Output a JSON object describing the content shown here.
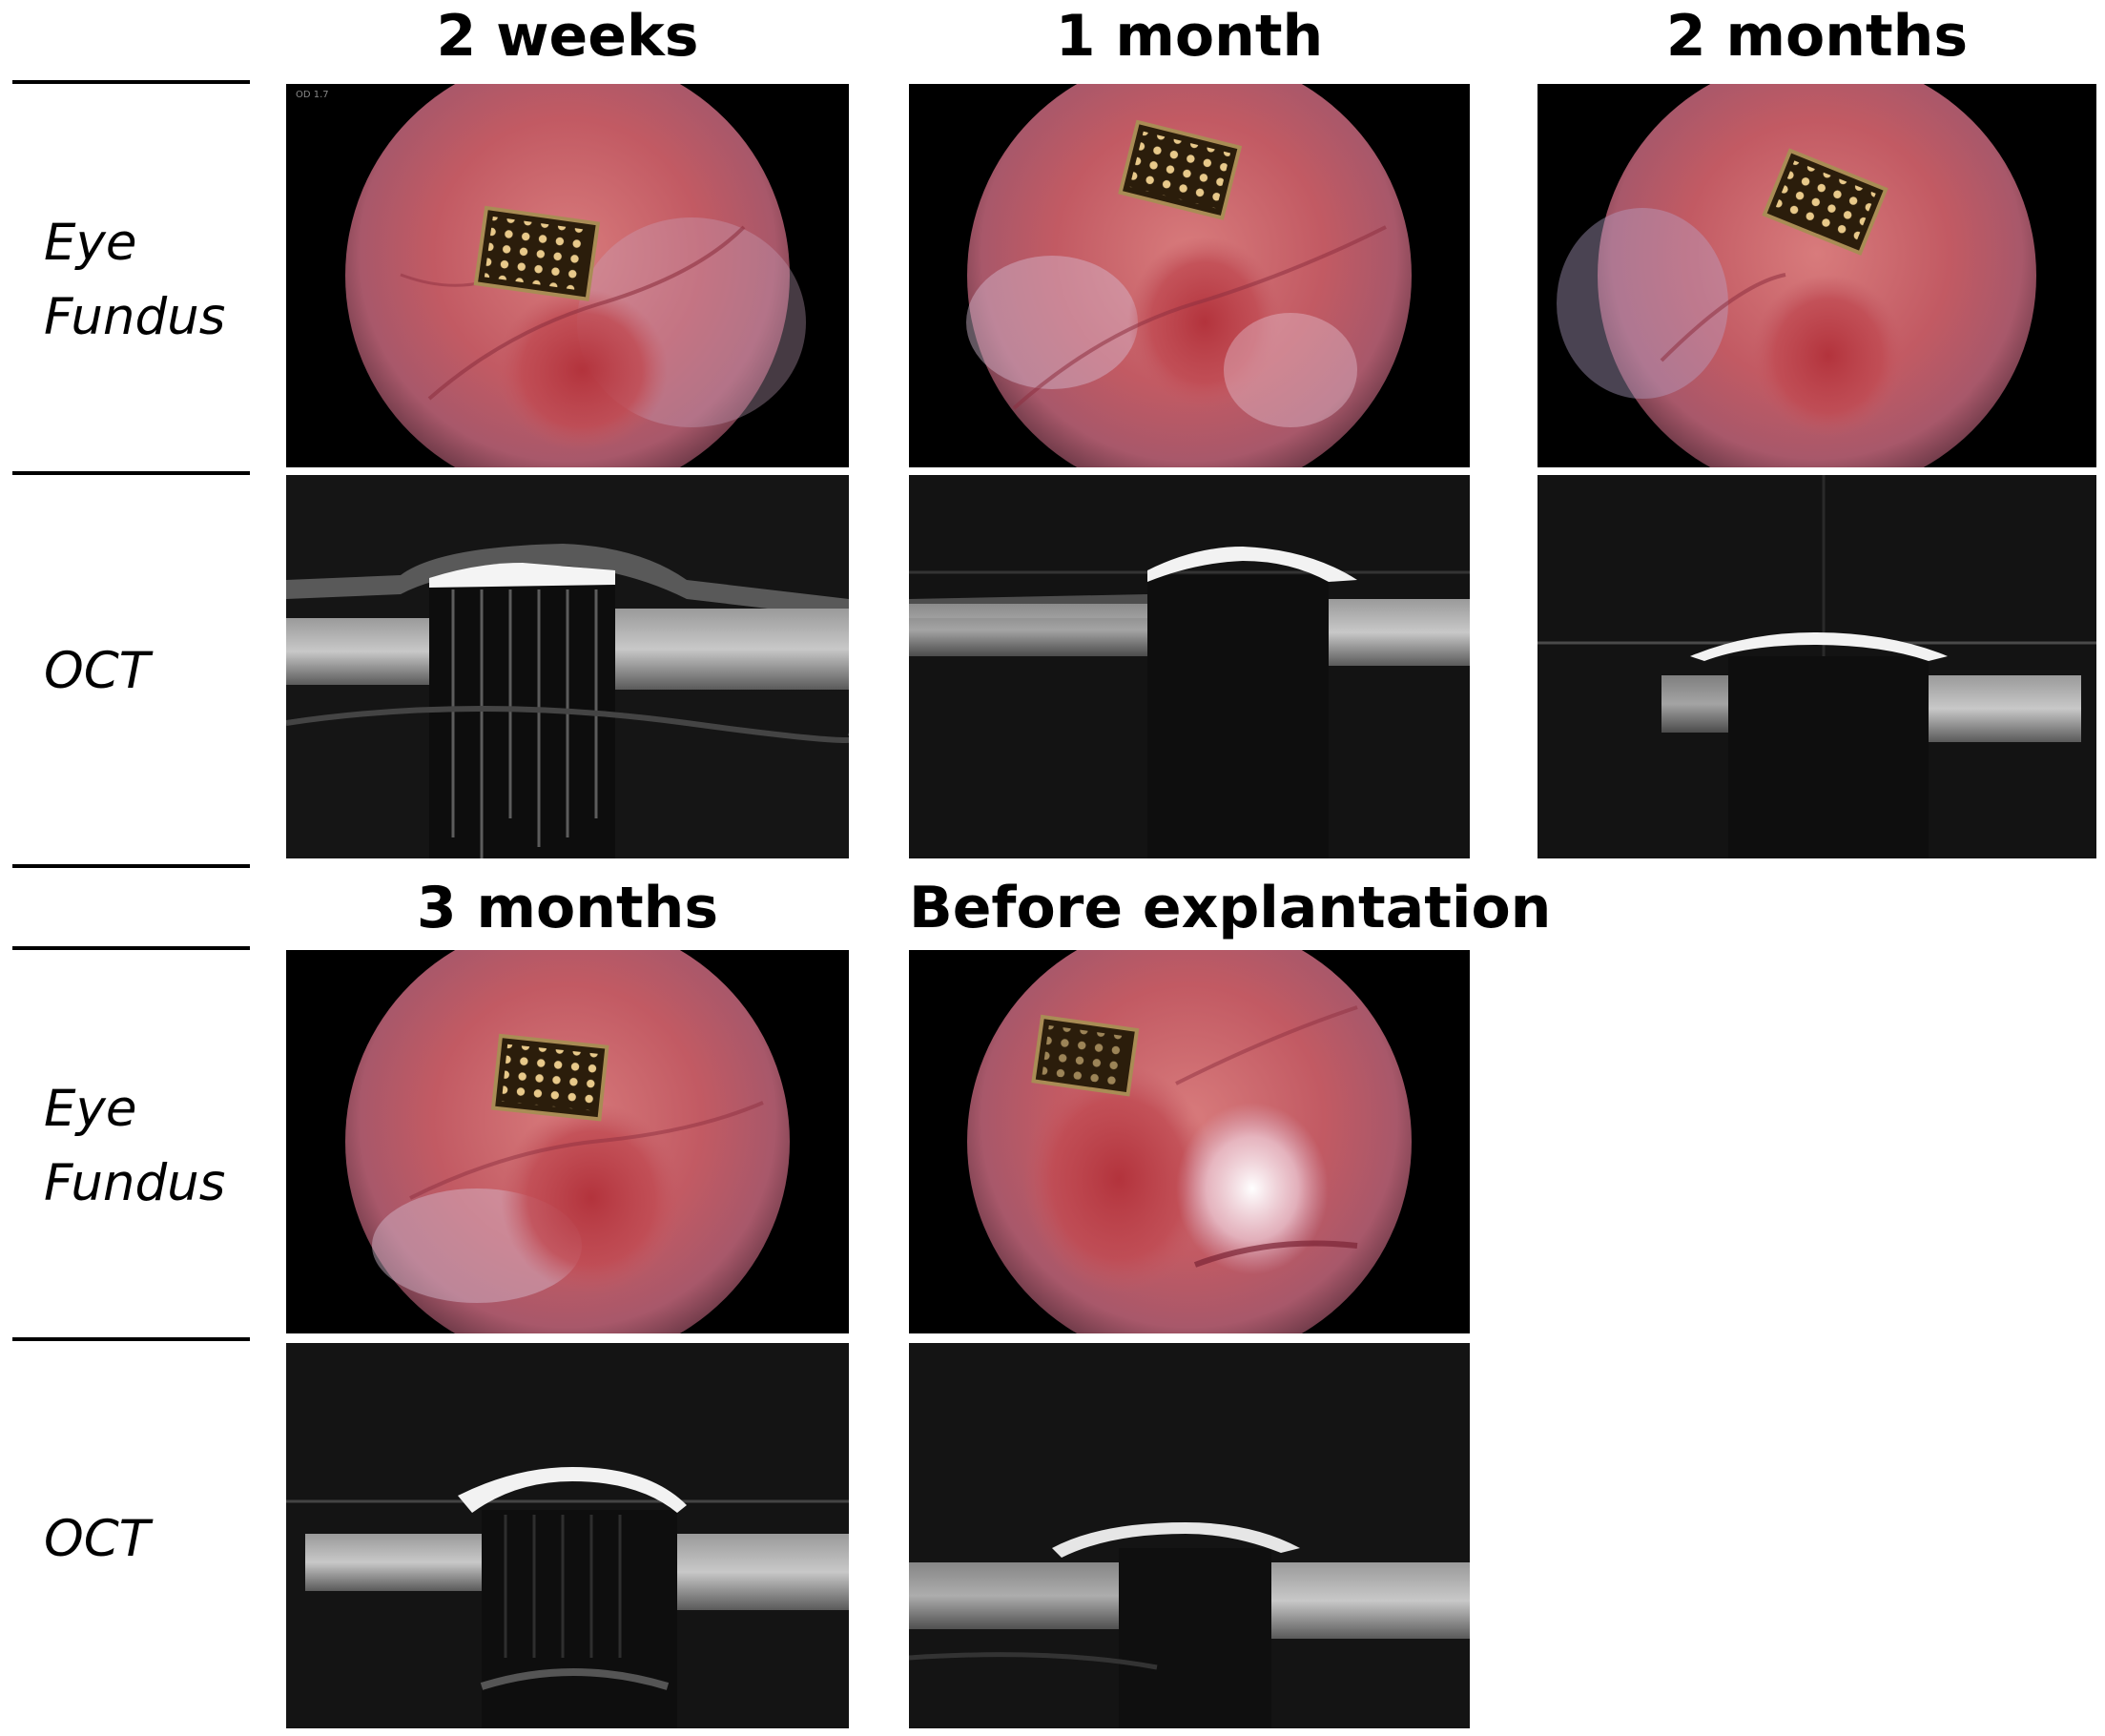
{
  "figure": {
    "row_labels": {
      "fundus_line1": "Eye",
      "fundus_line2": "Fundus",
      "oct": "OCT"
    },
    "timepoints": [
      {
        "title": "2 weeks"
      },
      {
        "title": "1 month"
      },
      {
        "title": "2 months"
      },
      {
        "title": "3 months"
      },
      {
        "title": "Before explantation"
      }
    ],
    "colors": {
      "background": "#ffffff",
      "panel_bg": "#000000",
      "retina": "#c9636a",
      "implant": "#3a2a12"
    }
  }
}
